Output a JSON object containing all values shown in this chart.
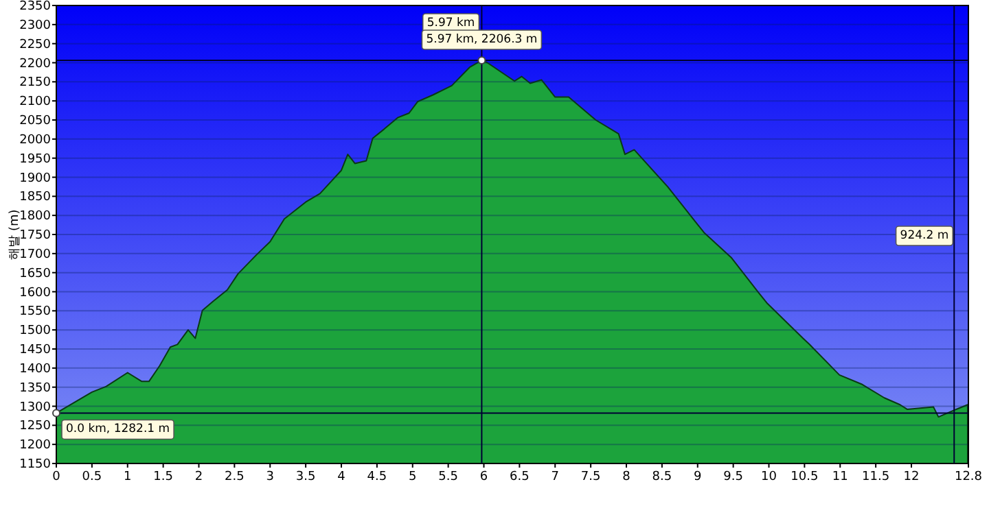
{
  "chart_data": {
    "type": "area",
    "ylabel": "해발 (m)",
    "color": "#1ca33c",
    "grid": "y",
    "x": [
      0,
      0.5,
      0.7,
      1.0,
      1.2,
      1.3,
      1.45,
      1.6,
      1.7,
      1.85,
      1.95,
      2.05,
      2.2,
      2.4,
      2.55,
      2.8,
      3.0,
      3.2,
      3.5,
      3.7,
      4.0,
      4.09,
      4.19,
      4.35,
      4.44,
      4.6,
      4.79,
      4.95,
      5.07,
      5.29,
      5.55,
      5.8,
      5.97,
      6.05,
      6.43,
      6.53,
      6.65,
      6.81,
      7.0,
      7.19,
      7.57,
      7.89,
      7.98,
      8.11,
      8.58,
      9.09,
      9.47,
      9.85,
      9.98,
      10.48,
      10.57,
      10.99,
      11.3,
      11.62,
      11.84,
      11.94,
      12.31,
      12.38,
      12.63,
      12.79
    ],
    "values": [
      1282.1,
      1337,
      1352,
      1388,
      1365,
      1365,
      1406,
      1455,
      1462,
      1500,
      1478,
      1551,
      1575,
      1605,
      1647,
      1695,
      1731,
      1791,
      1835,
      1857,
      1918,
      1960,
      1936,
      1943,
      2002,
      2026,
      2056,
      2068,
      2098,
      2116,
      2140,
      2188,
      2206.3,
      2200,
      2152,
      2164,
      2146,
      2155,
      2110,
      2110,
      2050,
      2014,
      1960,
      1972,
      1875,
      1755,
      1690,
      1599,
      1569,
      1478,
      1462,
      1382,
      1358,
      1322,
      1304,
      1292,
      1298,
      1272,
      1292,
      1304
    ],
    "xlim": [
      0,
      12.8
    ],
    "ylim": [
      1150,
      2350
    ],
    "xticks": [
      0.0,
      0.5,
      1.0,
      1.5,
      2.0,
      2.5,
      3.0,
      3.5,
      4.0,
      4.5,
      5.0,
      5.5,
      6.0,
      6.5,
      7.0,
      7.5,
      8.0,
      8.5,
      9.0,
      9.5,
      10.0,
      10.5,
      11.0,
      11.5,
      12.0,
      12.8
    ],
    "yticks": [
      1150,
      1200,
      1250,
      1300,
      1350,
      1400,
      1450,
      1500,
      1550,
      1600,
      1650,
      1700,
      1750,
      1800,
      1850,
      1900,
      1950,
      2000,
      2050,
      2100,
      2150,
      2200,
      2250,
      2300,
      2350
    ],
    "ref_lines": [
      {
        "axis": "y",
        "value": 2206.3,
        "color": "#000033"
      },
      {
        "axis": "y",
        "value": 1282.1,
        "color": "#000033"
      },
      {
        "axis": "x",
        "value": 5.97,
        "label": "5.97 km",
        "color": "#000033"
      },
      {
        "axis": "x",
        "value": 12.6,
        "label": "924.2 m",
        "color": "#000033"
      }
    ],
    "annotations": [
      {
        "text": "5.97 km, 2206.3 m",
        "x": 5.97,
        "y": 2206.3
      },
      {
        "text": "0.0 km, 1282.1 m",
        "x": 0,
        "y": 1282.1
      }
    ]
  }
}
